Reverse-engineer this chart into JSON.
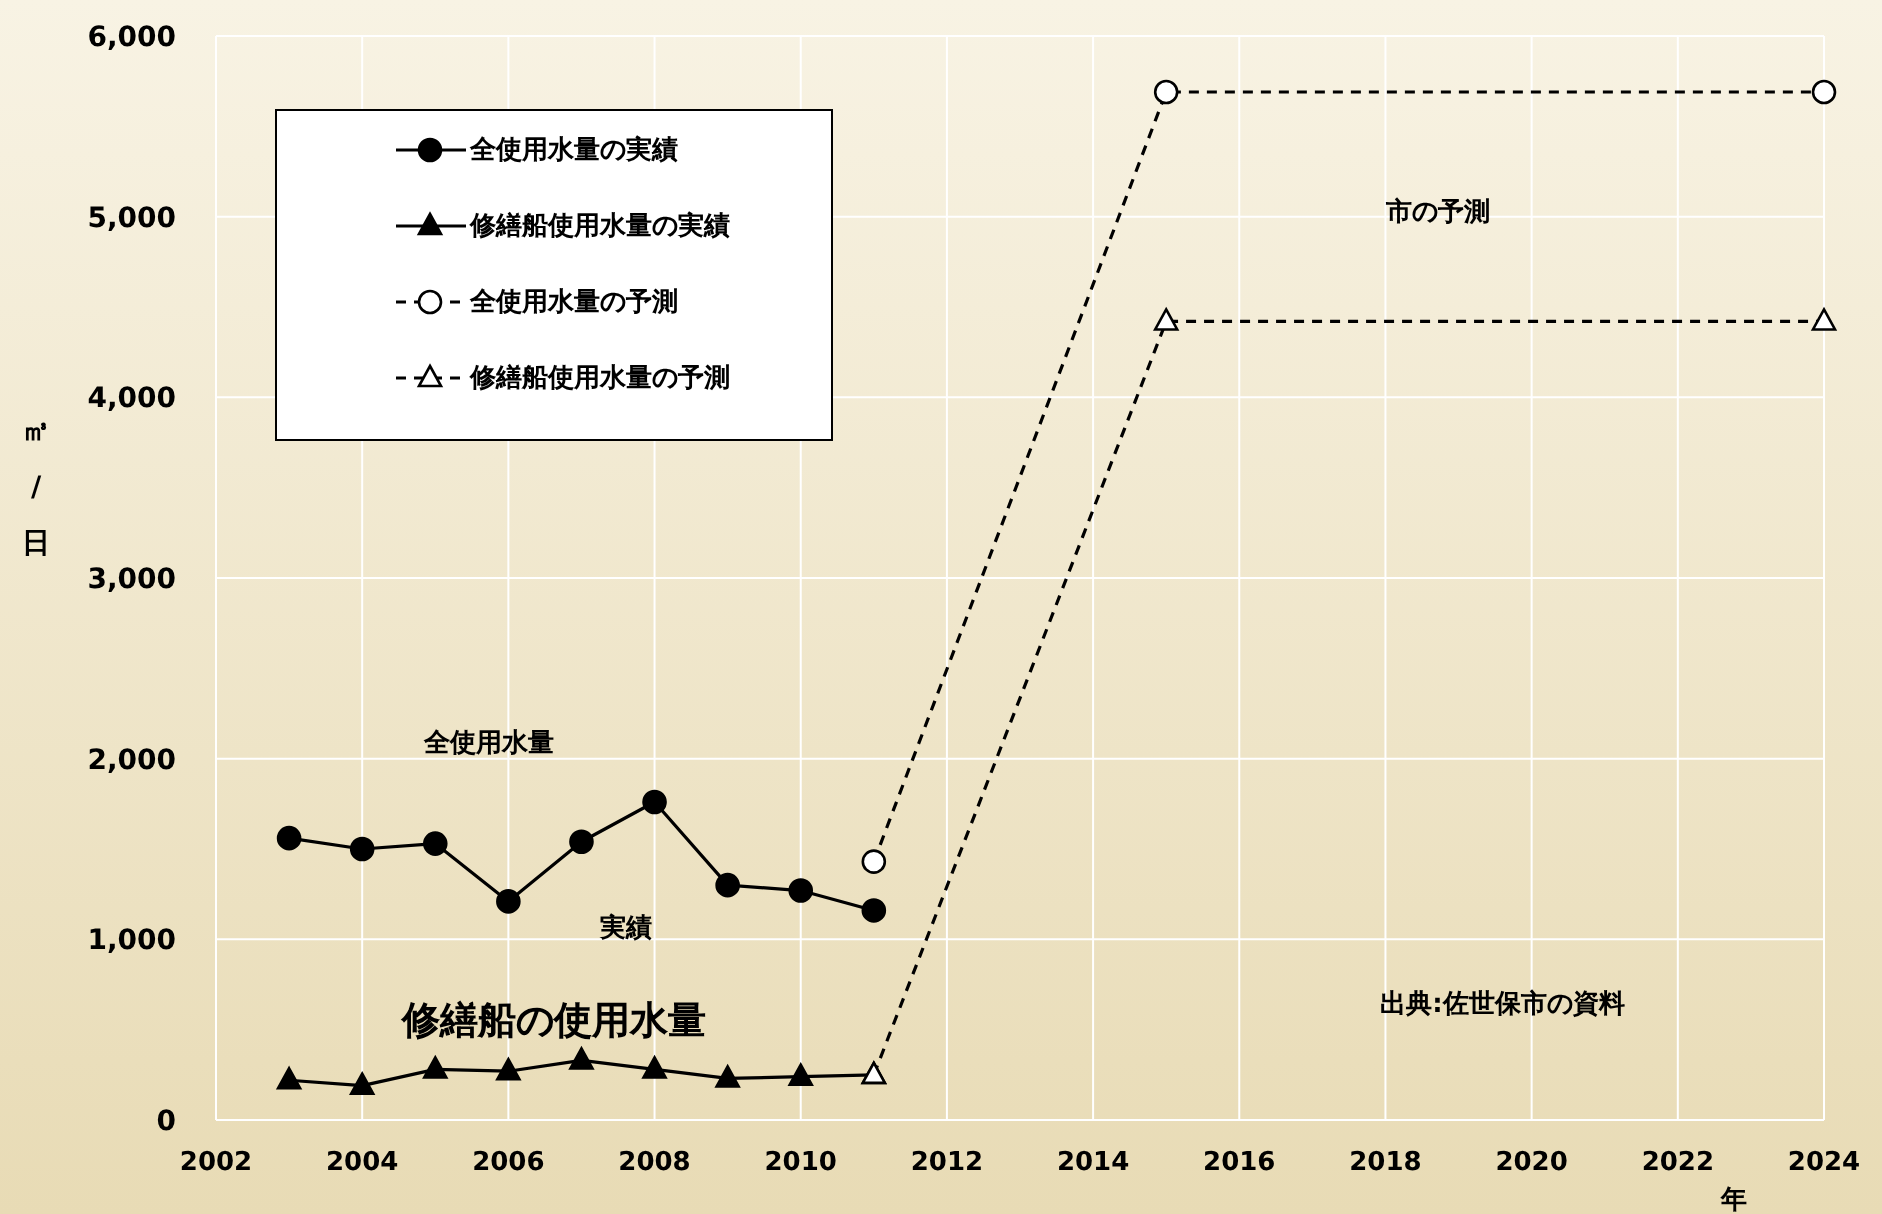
{
  "chart_data": {
    "type": "line",
    "xlabel": "年",
    "ylabel": "㎥/日",
    "xlim": [
      2002,
      2024
    ],
    "xticks": [
      2002,
      2004,
      2006,
      2008,
      2010,
      2012,
      2014,
      2016,
      2018,
      2020,
      2022,
      2024
    ],
    "ylim": [
      0,
      6000
    ],
    "yticks": [
      0,
      {
        "value": 1000,
        "label": "1,000"
      },
      {
        "value": 2000,
        "label": "2,000"
      },
      {
        "value": 3000,
        "label": "3,000"
      },
      {
        "value": 4000,
        "label": "4,000"
      },
      {
        "value": 5000,
        "label": "5,000"
      },
      {
        "value": 6000,
        "label": "6,000"
      }
    ],
    "grid": true,
    "legend": "top left",
    "series": [
      {
        "name": "全使用水量の実績",
        "color": "#000000",
        "marker": "circle",
        "line_style": "solid",
        "x": [
          2003,
          2004,
          2005,
          2006,
          2007,
          2008,
          2009,
          2010,
          2011
        ],
        "values": [
          1560,
          1500,
          1530,
          1210,
          1540,
          1760,
          1300,
          1270,
          1160
        ]
      },
      {
        "name": "修繕船使用水量の実績",
        "color": "#000000",
        "marker": "triangle",
        "line_style": "solid",
        "x": [
          2003,
          2004,
          2005,
          2006,
          2007,
          2008,
          2009,
          2010,
          2011
        ],
        "values": [
          220,
          190,
          280,
          270,
          330,
          280,
          230,
          240,
          250
        ]
      },
      {
        "name": "全使用水量の予測",
        "color": "#000000",
        "marker": "circle",
        "line_style": "dashed",
        "x": [
          2011,
          2015,
          2024
        ],
        "values": [
          1430,
          5690,
          5690
        ]
      },
      {
        "name": "修繕船使用水量の予測",
        "color": "#000000",
        "marker": "triangle",
        "line_style": "dashed",
        "x": [
          2011,
          2015,
          2024
        ],
        "values": [
          250,
          4420,
          4420
        ]
      }
    ],
    "annotations": [
      "市の予測",
      "全使用水量",
      "実績",
      "修繕船の使用水量",
      "出典:佐世保市の資料"
    ]
  }
}
